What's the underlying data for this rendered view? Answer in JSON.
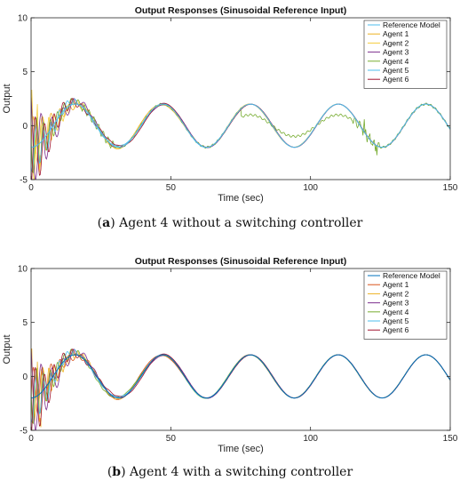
{
  "figure": {
    "captions": [
      {
        "label": "a",
        "text": "Agent 4 without a switching controller"
      },
      {
        "label": "b",
        "text": "Agent 4 with a switching controller"
      }
    ]
  },
  "chart_data": [
    {
      "type": "line",
      "title": "Output Responses (Sinusoidal Reference Input)",
      "xlabel": "Time (sec)",
      "ylabel": "Output",
      "xlim": [
        0,
        150
      ],
      "ylim": [
        -5,
        10
      ],
      "xticks": [
        0,
        50,
        100,
        150
      ],
      "yticks": [
        -5,
        0,
        5,
        10
      ],
      "grid": false,
      "legend_position": "top-right",
      "reference": {
        "amplitude": 2,
        "period": 31.4,
        "phase_deg": -90
      },
      "series": [
        {
          "name": "Reference Model",
          "color": "#4dbeee"
        },
        {
          "name": "Agent 1",
          "color": "#edb120"
        },
        {
          "name": "Agent 2",
          "color": "#f5cd3c"
        },
        {
          "name": "Agent 3",
          "color": "#7e2f8e"
        },
        {
          "name": "Agent 4",
          "color": "#77ac30"
        },
        {
          "name": "Agent 5",
          "color": "#4dbeee"
        },
        {
          "name": "Agent 6",
          "color": "#a2142f"
        }
      ]
    },
    {
      "type": "line",
      "title": "Output Responses (Sinusoidal Reference Input)",
      "xlabel": "Time (sec)",
      "ylabel": "Output",
      "xlim": [
        0,
        150
      ],
      "ylim": [
        -5,
        10
      ],
      "xticks": [
        0,
        50,
        100,
        150
      ],
      "yticks": [
        -5,
        0,
        5,
        10
      ],
      "grid": false,
      "legend_position": "top-right",
      "reference": {
        "amplitude": 2,
        "period": 31.4,
        "phase_deg": -90
      },
      "series": [
        {
          "name": "Reference Model",
          "color": "#0072bd"
        },
        {
          "name": "Agent 1",
          "color": "#d95319"
        },
        {
          "name": "Agent 2",
          "color": "#edb120"
        },
        {
          "name": "Agent 3",
          "color": "#7e2f8e"
        },
        {
          "name": "Agent 4",
          "color": "#77ac30"
        },
        {
          "name": "Agent 5",
          "color": "#4dbeee"
        },
        {
          "name": "Agent 6",
          "color": "#a2142f"
        }
      ]
    }
  ]
}
